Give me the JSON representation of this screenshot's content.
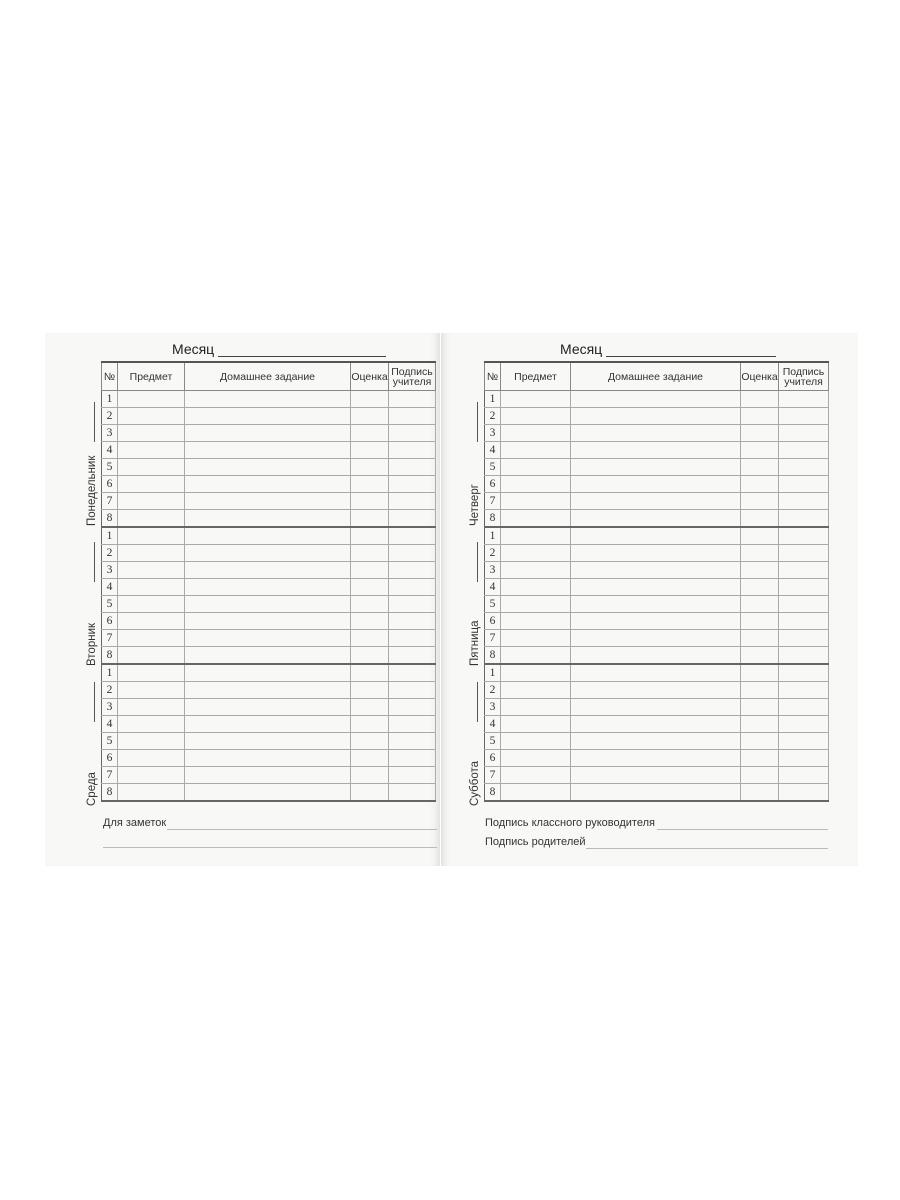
{
  "month_label": "Месяц",
  "columns": {
    "num": "№",
    "subject": "Предмет",
    "homework": "Домашнее задание",
    "grade": "Оценка",
    "sign_line1": "Подпись",
    "sign_line2": "учителя"
  },
  "lessons": [
    "1",
    "2",
    "3",
    "4",
    "5",
    "6",
    "7",
    "8"
  ],
  "left_page": {
    "days": [
      "Понедельник",
      "Вторник",
      "Среда"
    ],
    "notes_label": "Для заметок"
  },
  "right_page": {
    "days": [
      "Четверг",
      "Пятница",
      "Суббота"
    ],
    "class_teacher_sign": "Подпись классного руководителя",
    "parents_sign": "Подпись родителей"
  }
}
